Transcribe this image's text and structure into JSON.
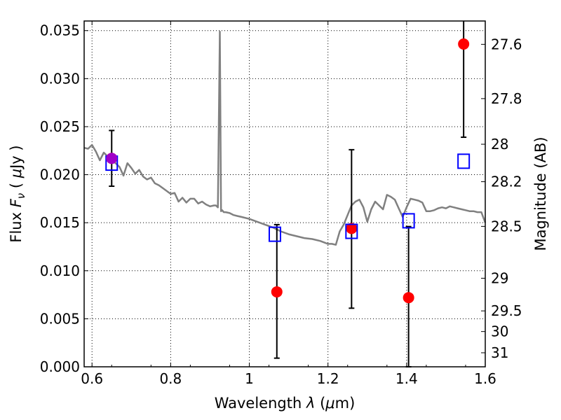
{
  "chart_data": {
    "type": "scatter",
    "xlabel": "Wavelength  λ (μm)",
    "ylabel": "Flux  F_ν  ( μJy )",
    "ylabel_right": "Magnitude (AB)",
    "xlim": [
      0.58,
      1.6
    ],
    "ylim": [
      0.0,
      0.036
    ],
    "grid": true,
    "x_ticks": [
      0.6,
      0.8,
      1.0,
      1.2,
      1.4,
      1.6
    ],
    "x_tick_labels": [
      "0.6",
      "0.8",
      "1",
      "1.2",
      "1.4",
      "1.6"
    ],
    "y_ticks": [
      0.0,
      0.005,
      0.01,
      0.015,
      0.02,
      0.025,
      0.03,
      0.035
    ],
    "y_tick_labels": [
      "0.000",
      "0.005",
      "0.010",
      "0.015",
      "0.020",
      "0.025",
      "0.030",
      "0.035"
    ],
    "right_ticks": [
      {
        "label": "27.6",
        "flux": 0.03357
      },
      {
        "label": "27.8",
        "flux": 0.02792
      },
      {
        "label": "28",
        "flux": 0.02317
      },
      {
        "label": "28.2",
        "flux": 0.01927
      },
      {
        "label": "28.5",
        "flux": 0.01462
      },
      {
        "label": "29",
        "flux": 0.00922
      },
      {
        "label": "29.5",
        "flux": 0.00582
      },
      {
        "label": "30",
        "flux": 0.00367
      },
      {
        "label": "31",
        "flux": 0.00146
      }
    ],
    "series": [
      {
        "style": "line",
        "color": "#808080",
        "x": [
          0.58,
          0.59,
          0.6,
          0.61,
          0.62,
          0.63,
          0.64,
          0.65,
          0.66,
          0.67,
          0.68,
          0.69,
          0.7,
          0.71,
          0.72,
          0.73,
          0.74,
          0.75,
          0.76,
          0.77,
          0.78,
          0.79,
          0.8,
          0.81,
          0.82,
          0.83,
          0.84,
          0.85,
          0.86,
          0.87,
          0.88,
          0.89,
          0.9,
          0.91,
          0.915,
          0.92,
          0.925,
          0.928,
          0.931,
          0.935,
          0.94,
          0.95,
          0.96,
          0.97,
          0.98,
          1.0,
          1.02,
          1.04,
          1.06,
          1.08,
          1.1,
          1.12,
          1.14,
          1.16,
          1.18,
          1.2,
          1.21,
          1.22,
          1.23,
          1.24,
          1.25,
          1.26,
          1.27,
          1.28,
          1.29,
          1.3,
          1.31,
          1.32,
          1.33,
          1.34,
          1.35,
          1.36,
          1.37,
          1.38,
          1.39,
          1.4,
          1.41,
          1.42,
          1.43,
          1.44,
          1.45,
          1.46,
          1.47,
          1.48,
          1.49,
          1.5,
          1.51,
          1.52,
          1.53,
          1.54,
          1.55,
          1.56,
          1.57,
          1.58,
          1.59,
          1.6
        ],
        "y": [
          0.0228,
          0.0227,
          0.0231,
          0.0224,
          0.0215,
          0.0223,
          0.0219,
          0.0215,
          0.0212,
          0.0208,
          0.0199,
          0.0212,
          0.0207,
          0.0201,
          0.0205,
          0.0198,
          0.0195,
          0.0197,
          0.0191,
          0.0189,
          0.0186,
          0.0183,
          0.018,
          0.0181,
          0.0172,
          0.0176,
          0.0171,
          0.0175,
          0.0175,
          0.017,
          0.0172,
          0.0169,
          0.0167,
          0.0168,
          0.0168,
          0.0166,
          0.0349,
          0.0162,
          0.0163,
          0.0161,
          0.0161,
          0.016,
          0.0158,
          0.0157,
          0.0156,
          0.0154,
          0.0151,
          0.0148,
          0.0145,
          0.0141,
          0.0138,
          0.0136,
          0.0134,
          0.0133,
          0.0131,
          0.0128,
          0.0128,
          0.0127,
          0.0141,
          0.0148,
          0.0158,
          0.0168,
          0.0172,
          0.0174,
          0.0166,
          0.0151,
          0.0164,
          0.0172,
          0.0168,
          0.0164,
          0.0179,
          0.0177,
          0.0174,
          0.0165,
          0.0156,
          0.0166,
          0.0175,
          0.0174,
          0.0173,
          0.0171,
          0.0162,
          0.0162,
          0.0163,
          0.0165,
          0.0166,
          0.0165,
          0.0167,
          0.0166,
          0.0165,
          0.0164,
          0.0163,
          0.0162,
          0.0162,
          0.0161,
          0.0161,
          0.015
        ]
      },
      {
        "style": "points",
        "marker": "circle",
        "color": "#ff0000",
        "x": [
          0.65,
          1.07,
          1.26,
          1.405,
          1.545
        ],
        "y": [
          0.0217,
          0.0078,
          0.0144,
          0.0072,
          0.0336
        ],
        "y_low": [
          0.0188,
          0.0009,
          0.0061,
          0.0,
          0.0239
        ],
        "y_high": [
          0.0246,
          0.0148,
          0.0226,
          0.0146,
          0.036
        ]
      },
      {
        "style": "points",
        "marker": "square-open",
        "color": "#0000ff",
        "x": [
          0.65,
          1.065,
          1.26,
          1.405,
          1.545
        ],
        "y": [
          0.0212,
          0.0138,
          0.0141,
          0.0152,
          0.0214
        ]
      },
      {
        "style": "points",
        "marker": "circle",
        "color": "#a000c8",
        "x": [
          0.65
        ],
        "y": [
          0.0217
        ]
      }
    ]
  }
}
